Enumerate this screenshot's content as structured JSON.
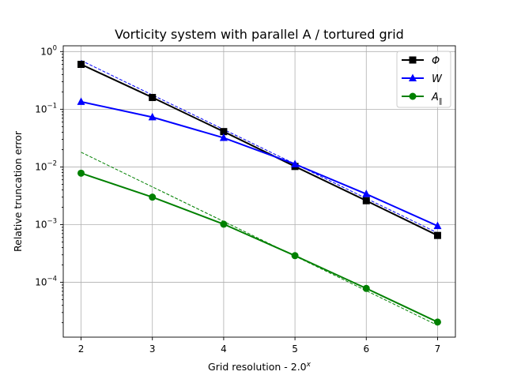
{
  "chart_data": {
    "type": "line",
    "title": "Vorticity system with parallel A / tortured grid",
    "xlabel": "Grid resolution - 2.0",
    "xlabel_superscript": "x",
    "ylabel": "Relative truncation error",
    "yscale": "log",
    "xlim": [
      1.75,
      7.25
    ],
    "ylim_log10": [
      -4.95,
      0.1
    ],
    "x": [
      2,
      3,
      4,
      5,
      6,
      7
    ],
    "x_tick_labels": [
      "2",
      "3",
      "4",
      "5",
      "6",
      "7"
    ],
    "y_ticks": [
      {
        "base": "10",
        "exp": "0",
        "value": 1
      },
      {
        "base": "10",
        "exp": "−1",
        "value": 0.1
      },
      {
        "base": "10",
        "exp": "−2",
        "value": 0.01
      },
      {
        "base": "10",
        "exp": "−3",
        "value": 0.001
      },
      {
        "base": "10",
        "exp": "−4",
        "value": 0.0001
      }
    ],
    "grid": true,
    "legend_position": "top-right",
    "series": [
      {
        "name": "Φ",
        "color": "#000000",
        "marker": "square",
        "values": [
          0.6,
          0.16,
          0.041,
          0.0102,
          0.0026,
          0.00065
        ]
      },
      {
        "name": "W",
        "color": "#0000ff",
        "marker": "triangle",
        "values": [
          0.135,
          0.073,
          0.032,
          0.0112,
          0.0034,
          0.00095
        ]
      },
      {
        "name": "A",
        "name_subscript": "∥",
        "color": "#008000",
        "marker": "circle",
        "values": [
          0.0078,
          0.003,
          0.00102,
          0.00029,
          7.85e-05,
          2.05e-05
        ]
      }
    ],
    "reference_lines": [
      {
        "color": "#0000ff",
        "style": "dashed",
        "x": [
          2,
          7
        ],
        "values": [
          0.7,
          0.00072
        ]
      },
      {
        "color": "#008000",
        "style": "dashed",
        "x": [
          2,
          7
        ],
        "values": [
          0.018,
          1.8e-05
        ]
      }
    ]
  }
}
